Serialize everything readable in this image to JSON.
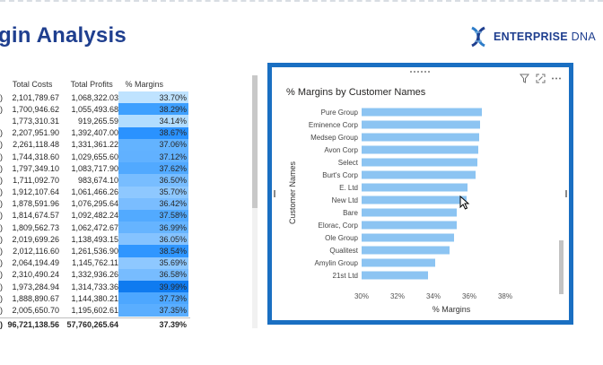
{
  "page": {
    "title": "gin Analysis",
    "brand": {
      "name": "ENTERPRISE",
      "suffix": "DNA",
      "accent": "#1f3f8f",
      "icon_colors": [
        "#2d7cc8",
        "#1f3f8f"
      ]
    }
  },
  "table": {
    "headers": [
      "Total Costs",
      "Total Profits",
      "% Margins"
    ],
    "rows": [
      {
        "c0": ")",
        "costs": "2,101,789.67",
        "profits": "1,068,322.03",
        "margin": "33.70%",
        "shade": "#bfe3ff"
      },
      {
        "c0": ")",
        "costs": "1,700,946.62",
        "profits": "1,055,493.68",
        "margin": "38.29%",
        "shade": "#3ea0ff"
      },
      {
        "c0": "",
        "costs": "1,773,310.31",
        "profits": "919,265.59",
        "margin": "34.14%",
        "shade": "#b2ddff"
      },
      {
        "c0": ")",
        "costs": "2,207,951.90",
        "profits": "1,392,407.00",
        "margin": "38.67%",
        "shade": "#2a92ff"
      },
      {
        "c0": ")",
        "costs": "2,261,118.48",
        "profits": "1,331,361.22",
        "margin": "37.06%",
        "shade": "#63b3ff"
      },
      {
        "c0": ")",
        "costs": "1,744,318.60",
        "profits": "1,029,655.60",
        "margin": "37.12%",
        "shade": "#61b1ff"
      },
      {
        "c0": ")",
        "costs": "1,797,349.10",
        "profits": "1,083,717.90",
        "margin": "37.62%",
        "shade": "#51a9ff"
      },
      {
        "c0": ")",
        "costs": "1,711,092.70",
        "profits": "983,674.10",
        "margin": "36.50%",
        "shade": "#78bdff"
      },
      {
        "c0": ")",
        "costs": "1,912,107.64",
        "profits": "1,061,466.26",
        "margin": "35.70%",
        "shade": "#8ec8ff"
      },
      {
        "c0": ")",
        "costs": "1,878,591.96",
        "profits": "1,076,295.64",
        "margin": "36.42%",
        "shade": "#7abdff"
      },
      {
        "c0": ")",
        "costs": "1,814,674.57",
        "profits": "1,092,482.24",
        "margin": "37.58%",
        "shade": "#52aaff"
      },
      {
        "c0": ")",
        "costs": "1,809,562.73",
        "profits": "1,062,472.67",
        "margin": "36.99%",
        "shade": "#66b4ff"
      },
      {
        "c0": ")",
        "costs": "2,019,699.26",
        "profits": "1,138,493.15",
        "margin": "36.05%",
        "shade": "#85c3ff"
      },
      {
        "c0": ")",
        "costs": "2,012,116.60",
        "profits": "1,261,536.90",
        "margin": "38.54%",
        "shade": "#2f96ff"
      },
      {
        "c0": ")",
        "costs": "2,064,194.49",
        "profits": "1,145,762.11",
        "margin": "35.69%",
        "shade": "#8ec8ff"
      },
      {
        "c0": ")",
        "costs": "2,310,490.24",
        "profits": "1,332,936.26",
        "margin": "36.58%",
        "shade": "#77bcff"
      },
      {
        "c0": ")",
        "costs": "1,973,284.94",
        "profits": "1,314,733.36",
        "margin": "39.99%",
        "shade": "#0f7bf0"
      },
      {
        "c0": ")",
        "costs": "1,888,890.67",
        "profits": "1,144,380.21",
        "margin": "37.73%",
        "shade": "#4da7ff"
      },
      {
        "c0": ")",
        "costs": "2,005,650.70",
        "profits": "1,195,602.61",
        "margin": "37.35%",
        "shade": "#5aaeff"
      }
    ],
    "total": {
      "c0": ")",
      "costs": "96,721,138.56",
      "profits": "57,760,265.64",
      "margin": "37.39%"
    }
  },
  "chart_card": {
    "title": "% Margins by Customer Names",
    "tools": [
      "filter-icon",
      "focus-mode-icon",
      "more-options-icon"
    ],
    "border_color": "#1a6fc2"
  },
  "chart_data": {
    "type": "bar",
    "orientation": "horizontal",
    "title": "% Margins by Customer Names",
    "xlabel": "% Margins",
    "ylabel": "Customer Names",
    "xlim": [
      30,
      40
    ],
    "xticks": [
      "30%",
      "32%",
      "34%",
      "36%",
      "38%"
    ],
    "xtick_values": [
      30,
      32,
      34,
      36,
      38
    ],
    "categories": [
      "Pure Group",
      "Eminence Corp",
      "Medsep Group",
      "Avon Corp",
      "Select",
      "Burt's Corp",
      "E. Ltd",
      "New Ltd",
      "Bare",
      "Elorac, Corp",
      "Ole Group",
      "Qualitest",
      "Amylin Group",
      "21st Ltd"
    ],
    "values": [
      36.7,
      36.6,
      36.55,
      36.5,
      36.45,
      36.35,
      35.9,
      35.85,
      35.3,
      35.3,
      35.15,
      34.9,
      34.1,
      33.7
    ],
    "bar_color": "#8cc4f2",
    "grid": false
  }
}
